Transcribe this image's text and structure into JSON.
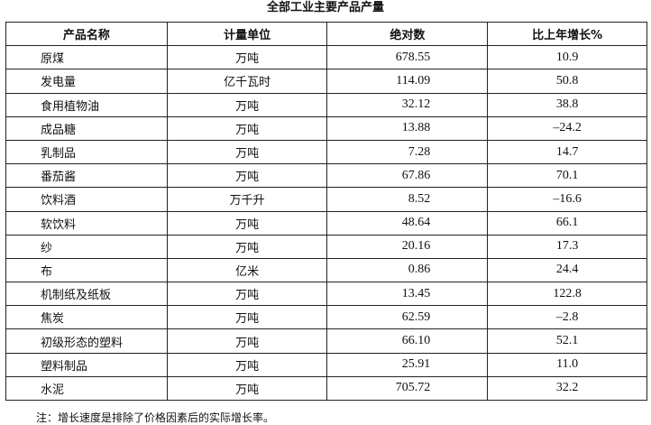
{
  "title": "全部工业主要产品产量",
  "headers": [
    "产品名称",
    "计量单位",
    "绝对数",
    "比上年增长%"
  ],
  "rows": [
    {
      "name": "原煤",
      "unit": "万吨",
      "absolute": "678.55",
      "growth": "10.9"
    },
    {
      "name": "发电量",
      "unit": "亿千瓦时",
      "absolute": "114.09",
      "growth": "50.8"
    },
    {
      "name": "食用植物油",
      "unit": "万吨",
      "absolute": "32.12",
      "growth": "38.8"
    },
    {
      "name": "成品糖",
      "unit": "万吨",
      "absolute": "13.88",
      "growth": "–24.2"
    },
    {
      "name": "乳制品",
      "unit": "万吨",
      "absolute": "7.28",
      "growth": "14.7"
    },
    {
      "name": "番茄酱",
      "unit": "万吨",
      "absolute": "67.86",
      "growth": "70.1"
    },
    {
      "name": "饮料酒",
      "unit": "万千升",
      "absolute": "8.52",
      "growth": "–16.6"
    },
    {
      "name": "软饮料",
      "unit": "万吨",
      "absolute": "48.64",
      "growth": "66.1"
    },
    {
      "name": "纱",
      "unit": "万吨",
      "absolute": "20.16",
      "growth": "17.3"
    },
    {
      "name": "布",
      "unit": "亿米",
      "absolute": "0.86",
      "growth": "24.4"
    },
    {
      "name": "机制纸及纸板",
      "unit": "万吨",
      "absolute": "13.45",
      "growth": "122.8"
    },
    {
      "name": "焦炭",
      "unit": "万吨",
      "absolute": "62.59",
      "growth": "–2.8"
    },
    {
      "name": "初级形态的塑料",
      "unit": "万吨",
      "absolute": "66.10",
      "growth": "52.1"
    },
    {
      "name": "塑料制品",
      "unit": "万吨",
      "absolute": "25.91",
      "growth": "11.0"
    },
    {
      "name": "水泥",
      "unit": "万吨",
      "absolute": "705.72",
      "growth": "32.2"
    }
  ],
  "note": "注：增长速度是排除了价格因素后的实际增长率。"
}
